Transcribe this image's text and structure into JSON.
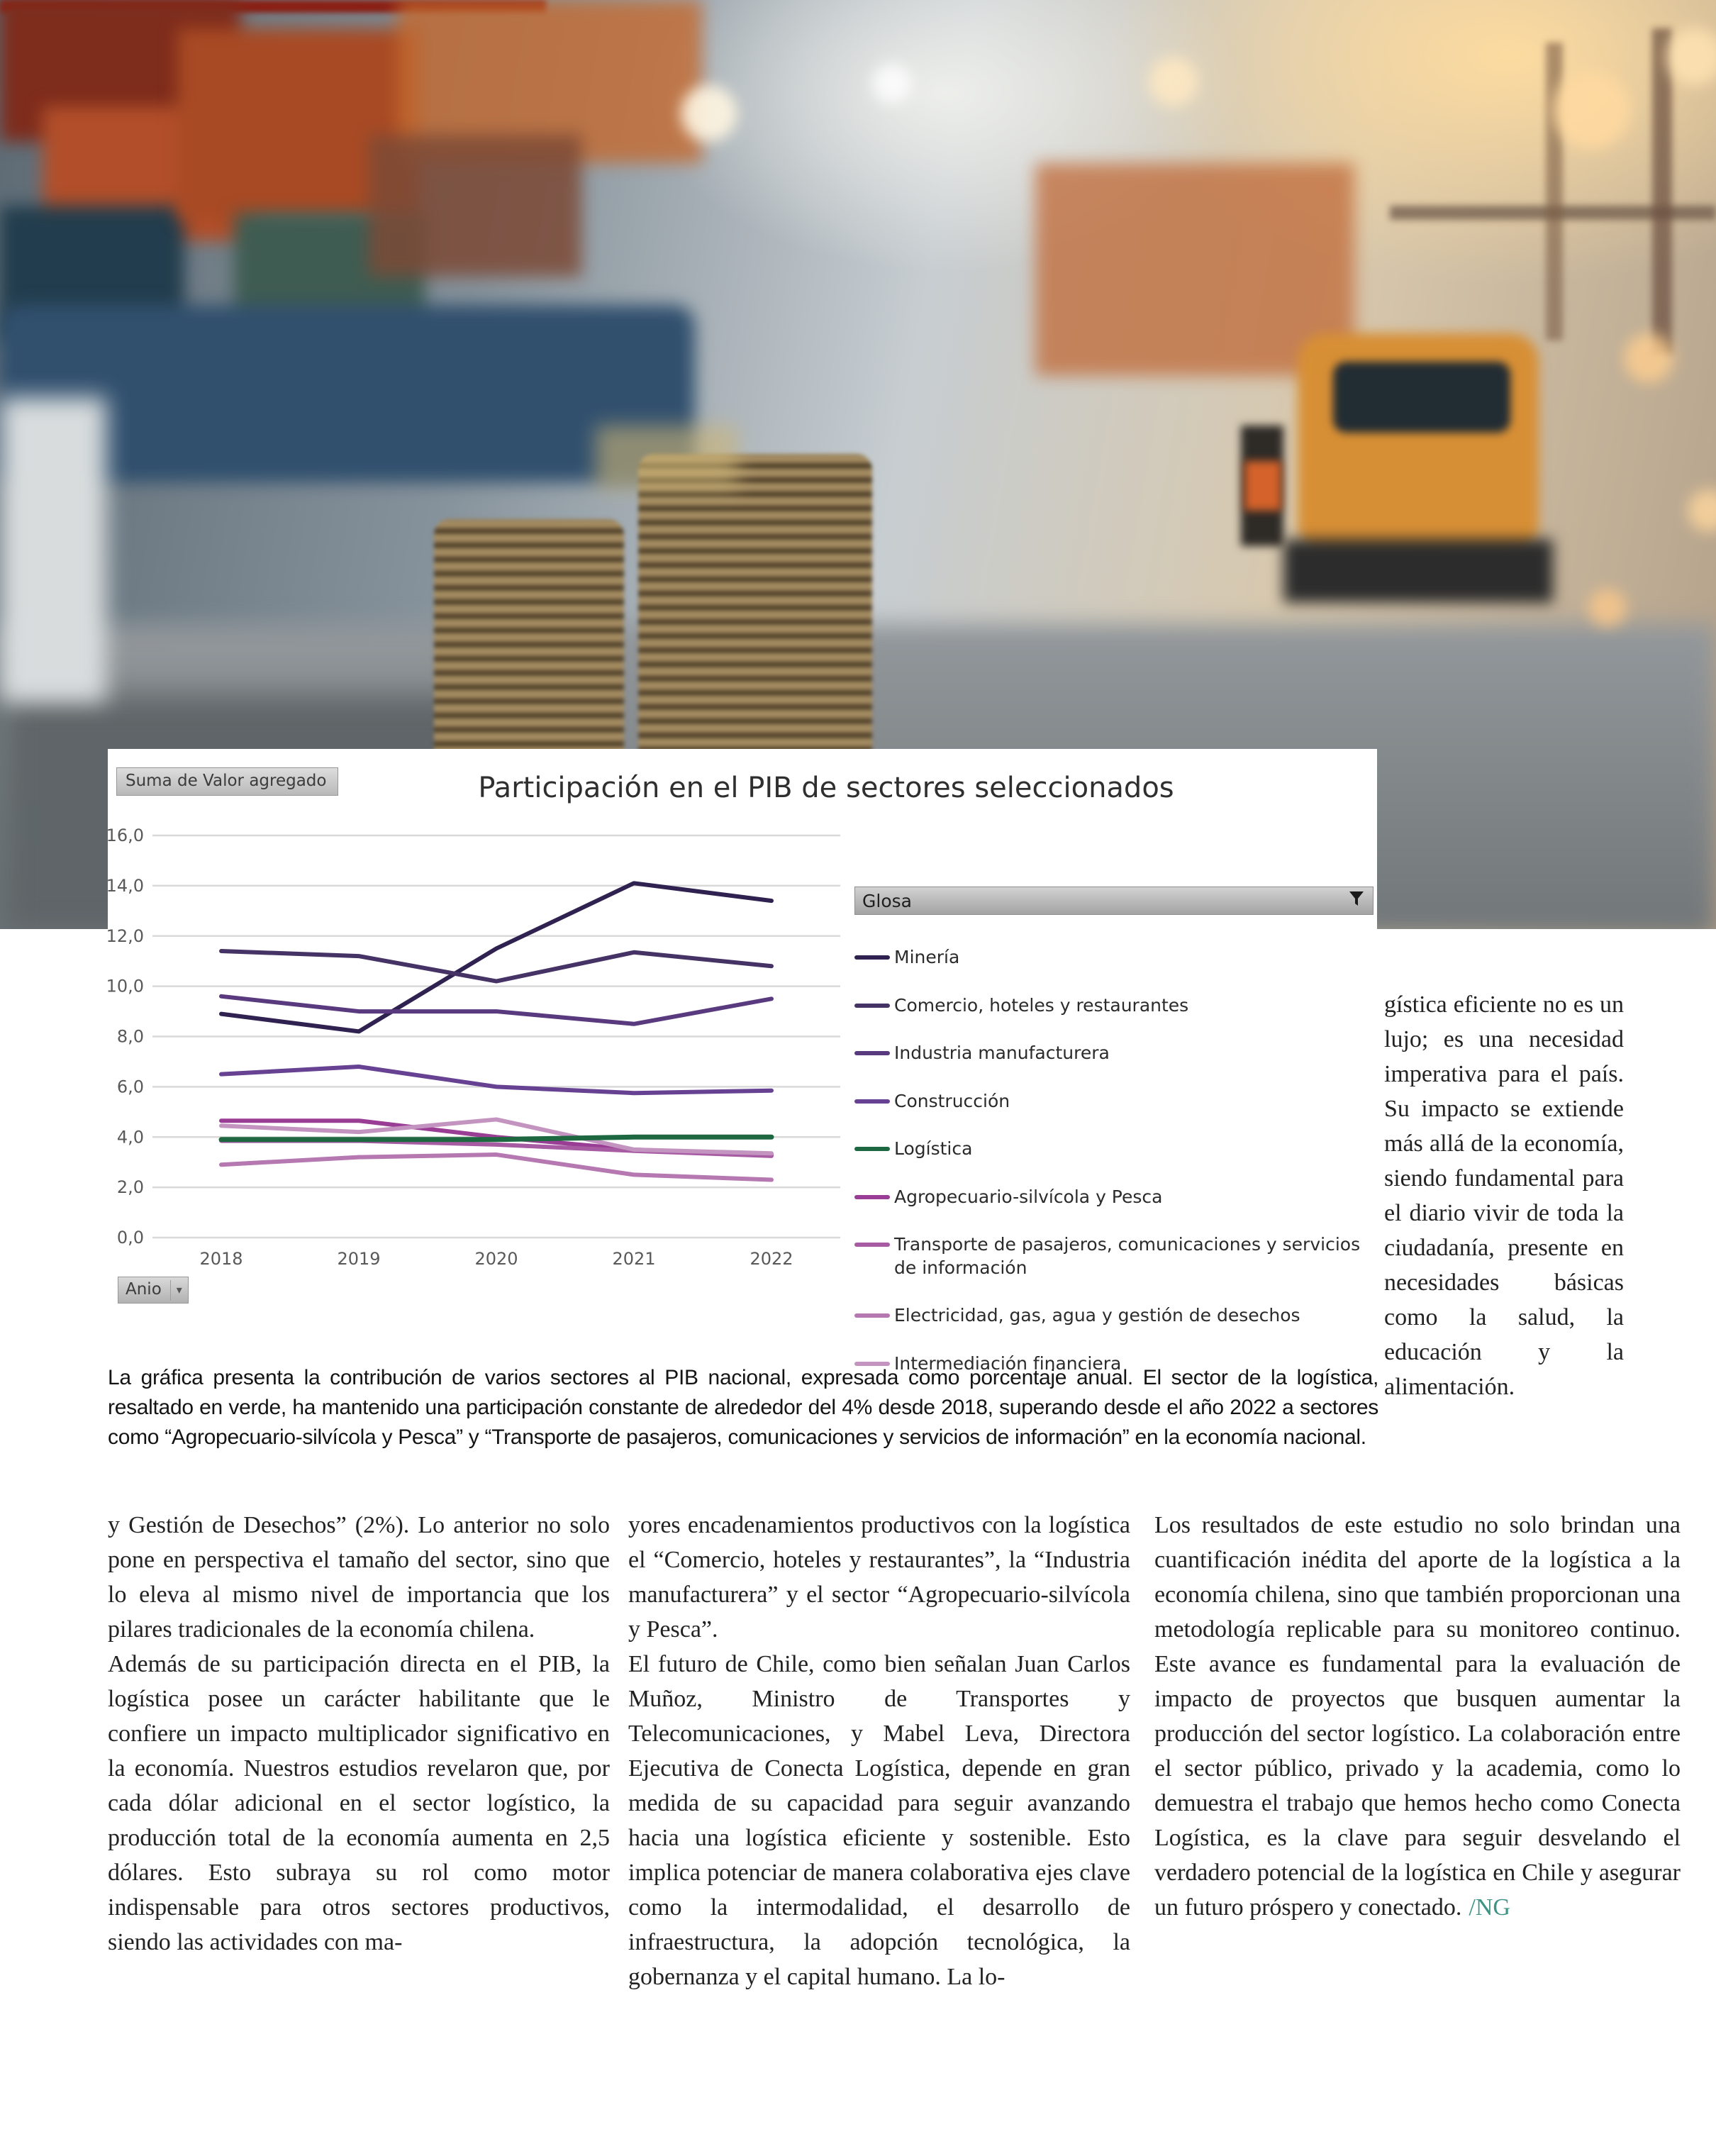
{
  "page": {
    "caption": "La gráfica presenta la contribución de varios sectores al PIB nacional, expresada como porcentaje anual. El sector de la logística, resaltado en verde, ha mantenido una participación constante de alrededor del 4% desde 2018, superando desde el año 2022 a sectores como “Agropecuario-silvícola y Pesca” y “Transporte de pasajeros, comunicaciones y servicios de información” en la economía nacional.",
    "side_column": "gística eficiente no es un lujo; es una necesidad imperativa para el país. Su impacto se extiende más allá de la economía, siendo fundamental para el diario vivir de toda la ciudadanía, presente en necesidades básicas como la salud, la educación y la alimentación.",
    "columns": [
      {
        "paragraphs": [
          "y Gestión de Desechos” (2%). Lo anterior no solo pone en perspectiva el tamaño del sector, sino que lo eleva al mismo nivel de importancia que los pilares tradicionales de la economía chilena.",
          "Además de su participación directa en el PIB, la logística posee un carácter habilitante que le confiere un impacto multiplicador significativo en la economía. Nuestros estudios revelaron que, por cada dólar adicional en el sector logístico, la producción total de la economía aumenta en 2,5 dólares. Esto subraya su rol como motor indispensable para otros sectores productivos, siendo las actividades con ma-"
        ]
      },
      {
        "paragraphs": [
          "yores encadenamientos productivos con la logística el “Comercio, hoteles y restaurantes”, la “Industria manufacturera” y el sector “Agropecuario-silvícola y Pesca”.",
          "El futuro de Chile, como bien señalan Juan Carlos Muñoz, Ministro de Transportes y Telecomunicaciones, y Mabel Leva, Directora Ejecutiva de Conecta Logística, depende en gran medida de su capacidad para seguir avanzando hacia una logística eficiente y sostenible. Esto implica potenciar de manera colaborativa ejes clave como la intermodalidad, el desarrollo de infraestructura, la adopción tecnológica, la gobernanza y el capital humano. La lo-"
        ]
      },
      {
        "paragraphs": [
          "Los resultados de este estudio no solo brindan una cuantificación inédita del aporte de la logística a la economía chilena, sino que también proporcionan una metodología replicable para su monitoreo continuo. Este avance es fundamental para la evaluación de impacto de proyectos que busquen aumentar la producción del sector logístico. La colaboración entre el sector público, privado y la academia, como lo demuestra el trabajo que hemos hecho como Conecta Logística, es la clave para seguir desvelando el verdadero potencial de la logística en Chile y asegurar un futuro próspero y conectado."
        ],
        "signature": "/NG",
        "signature_color": "#3d9384"
      }
    ]
  },
  "chart_data": {
    "type": "line",
    "title": "Participación en el PIB de sectores seleccionados",
    "measure_label": "Suma de Valor agregado",
    "legend_header": "Glosa",
    "axis_field_label": "Anio",
    "x": [
      "2018",
      "2019",
      "2020",
      "2021",
      "2022"
    ],
    "ylim": [
      0,
      16
    ],
    "ytick_labels": [
      "0,0",
      "2,0",
      "4,0",
      "6,0",
      "8,0",
      "10,0",
      "12,0",
      "14,0",
      "16,0"
    ],
    "grid": true,
    "legend_position": "right",
    "grid_color": "#d9d9d9",
    "axis_text_color": "#595959",
    "series": [
      {
        "name": "Minería",
        "color": "#2f2150",
        "values": [
          8.9,
          8.2,
          11.5,
          14.1,
          13.4
        ]
      },
      {
        "name": "Comercio, hoteles y restaurantes",
        "color": "#463366",
        "values": [
          11.4,
          11.2,
          10.2,
          11.35,
          10.8
        ]
      },
      {
        "name": "Industria manufacturera",
        "color": "#5a3a7e",
        "values": [
          9.6,
          9.0,
          9.0,
          8.5,
          9.5
        ]
      },
      {
        "name": "Construcción",
        "color": "#674293",
        "values": [
          6.5,
          6.8,
          6.0,
          5.75,
          5.85
        ]
      },
      {
        "name": "Logística",
        "color": "#1d6840",
        "values": [
          3.9,
          3.9,
          3.9,
          4.0,
          4.0
        ],
        "highlight": true
      },
      {
        "name": "Agropecuario-silvícola y Pesca",
        "color": "#9a3d95",
        "values": [
          4.65,
          4.65,
          4.0,
          3.5,
          3.3
        ]
      },
      {
        "name": "Transporte de pasajeros, comunicaciones y servicios de información",
        "color": "#a75ba3",
        "values": [
          3.85,
          3.85,
          3.7,
          3.45,
          3.25
        ]
      },
      {
        "name": "Electricidad, gas, agua y gestión de desechos",
        "color": "#b578b1",
        "values": [
          2.9,
          3.2,
          3.3,
          2.5,
          2.3
        ]
      },
      {
        "name": "Intermediación financiera",
        "color": "#c494c1",
        "values": [
          4.45,
          4.2,
          4.7,
          3.5,
          3.35
        ]
      }
    ]
  }
}
